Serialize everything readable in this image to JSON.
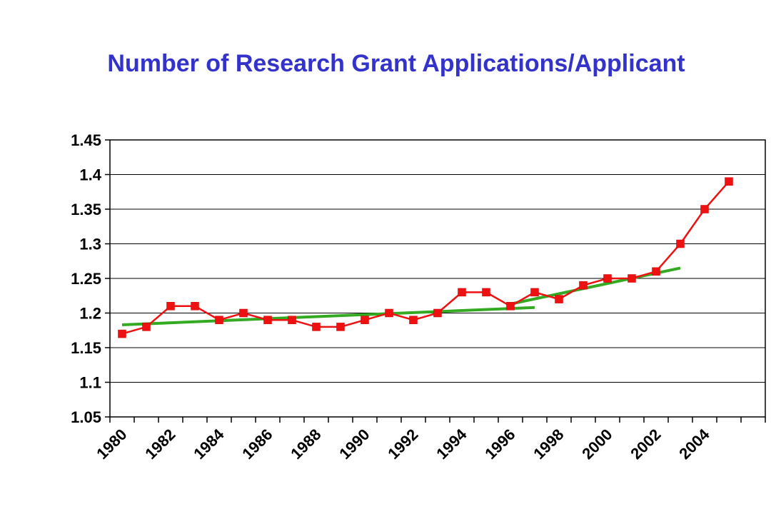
{
  "chart_data": {
    "type": "line",
    "title": "Number of Research Grant Applications/Applicant",
    "xlabel": "",
    "ylabel": "",
    "x": [
      1980,
      1981,
      1982,
      1983,
      1984,
      1985,
      1986,
      1987,
      1988,
      1989,
      1990,
      1991,
      1992,
      1993,
      1994,
      1995,
      1996,
      1997,
      1998,
      1999,
      2000,
      2001,
      2002,
      2003,
      2004,
      2005
    ],
    "series": [
      {
        "color": "#ee1111",
        "marker": "square",
        "values": [
          1.17,
          1.18,
          1.21,
          1.21,
          1.19,
          1.2,
          1.19,
          1.19,
          1.18,
          1.18,
          1.19,
          1.2,
          1.19,
          1.2,
          1.23,
          1.23,
          1.21,
          1.23,
          1.22,
          1.24,
          1.25,
          1.25,
          1.26,
          1.3,
          1.35,
          1.39
        ]
      }
    ],
    "trendlines": [
      {
        "color": "#33aa22",
        "points": [
          [
            1980,
            1.183
          ],
          [
            1997,
            1.208
          ]
        ]
      },
      {
        "color": "#33aa22",
        "points": [
          [
            1996,
            1.213
          ],
          [
            2003,
            1.265
          ]
        ]
      }
    ],
    "x_tick_labels": [
      "1980",
      "1982",
      "1984",
      "1986",
      "1988",
      "1990",
      "1992",
      "1994",
      "1996",
      "1998",
      "2000",
      "2002",
      "2004"
    ],
    "y_tick_labels": [
      "1.05",
      "1.1",
      "1.15",
      "1.2",
      "1.25",
      "1.3",
      "1.35",
      "1.4",
      "1.45"
    ],
    "ylim": [
      1.05,
      1.45
    ],
    "y_ticks": [
      1.05,
      1.1,
      1.15,
      1.2,
      1.25,
      1.3,
      1.35,
      1.4,
      1.45
    ],
    "grid": true
  }
}
